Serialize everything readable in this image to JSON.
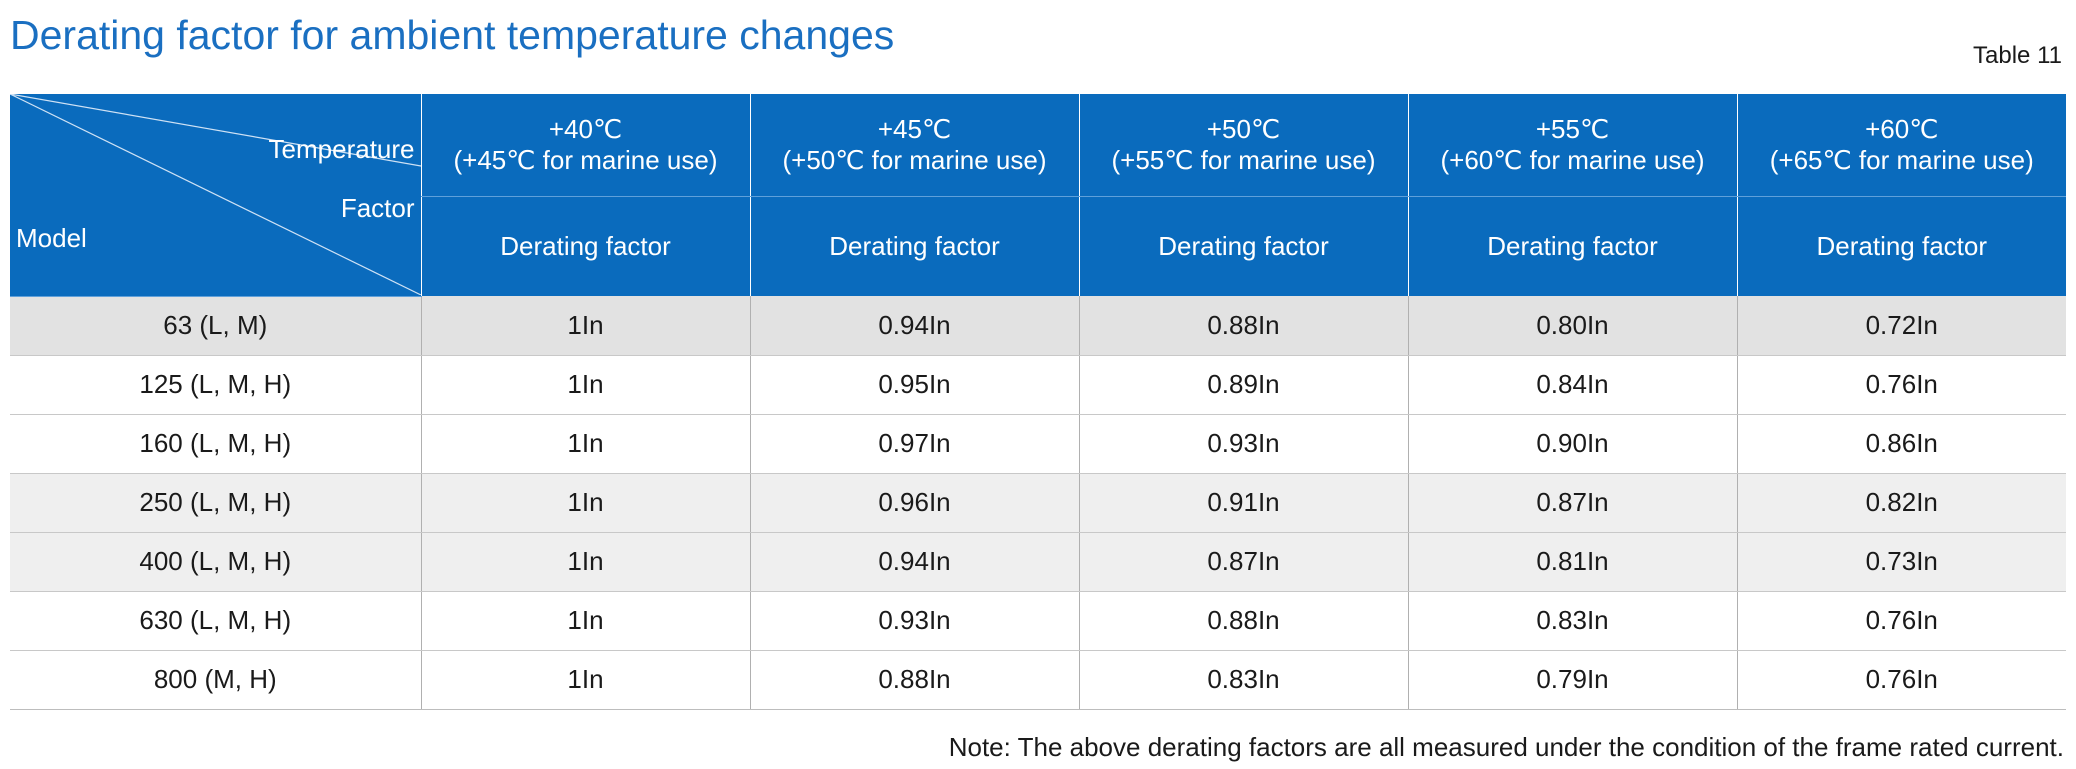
{
  "title": "Derating factor for ambient temperature changes",
  "table_label": "Table 11",
  "header": {
    "corner": {
      "temperature": "Temperature",
      "factor": "Factor",
      "model": "Model"
    },
    "temperatures": [
      {
        "line1": "+40℃",
        "line2": "(+45℃ for marine use)"
      },
      {
        "line1": "+45℃",
        "line2": "(+50℃ for marine use)"
      },
      {
        "line1": "+50℃",
        "line2": "(+55℃ for marine use)"
      },
      {
        "line1": "+55℃",
        "line2": "(+60℃ for marine use)"
      },
      {
        "line1": "+60℃",
        "line2": "(+65℃ for marine use)"
      }
    ],
    "subheaders": [
      "Derating factor",
      "Derating factor",
      "Derating factor",
      "Derating factor",
      "Derating factor"
    ]
  },
  "rows": [
    {
      "model": "63 (L, M)",
      "values": [
        "1In",
        "0.94In",
        "0.88In",
        "0.80In",
        "0.72In"
      ]
    },
    {
      "model": "125 (L, M, H)",
      "values": [
        "1In",
        "0.95In",
        "0.89In",
        "0.84In",
        "0.76In"
      ]
    },
    {
      "model": "160 (L, M, H)",
      "values": [
        "1In",
        "0.97In",
        "0.93In",
        "0.90In",
        "0.86In"
      ]
    },
    {
      "model": "250 (L, M, H)",
      "values": [
        "1In",
        "0.96In",
        "0.91In",
        "0.87In",
        "0.82In"
      ]
    },
    {
      "model": "400 (L, M, H)",
      "values": [
        "1In",
        "0.94In",
        "0.87In",
        "0.81In",
        "0.73In"
      ]
    },
    {
      "model": "630 (L, M, H)",
      "values": [
        "1In",
        "0.93In",
        "0.88In",
        "0.83In",
        "0.76In"
      ]
    },
    {
      "model": "800 (M, H)",
      "values": [
        "1In",
        "0.88In",
        "0.83In",
        "0.79In",
        "0.76In"
      ]
    }
  ],
  "note": "Note: The above derating factors are all measured under the condition of the frame rated current.",
  "colors": {
    "title": "#1a6fc1",
    "header_bg": "#0a6bbd",
    "header_text": "#ffffff",
    "row_shade_dark": "#e2e2e2",
    "row_shade_light": "#efefef"
  }
}
